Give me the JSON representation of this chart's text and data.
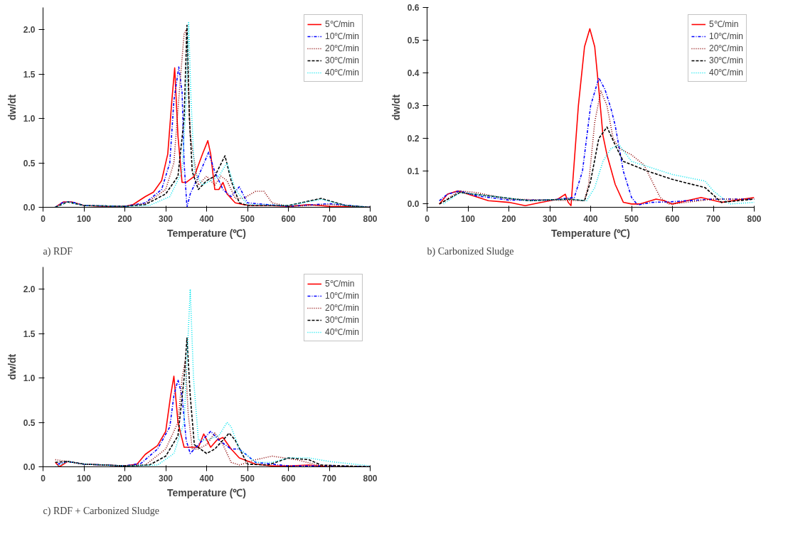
{
  "chart_data": [
    {
      "type": "line",
      "xlabel": "Temperature (℃)",
      "ylabel": "dw/dt",
      "annotations": [
        "a) RDF"
      ],
      "xlim": [
        0,
        800
      ],
      "xticks": [
        0,
        100,
        200,
        300,
        400,
        500,
        600,
        700,
        800
      ],
      "ylim": [
        0,
        2.25
      ],
      "yticks": [
        {
          "value": 0,
          "label": "0.0"
        },
        0.5,
        {
          "value": 1,
          "label": "1.0"
        },
        1.5,
        {
          "value": 2,
          "label": "2.0"
        }
      ],
      "legend": "top right",
      "grid": false,
      "series": [
        {
          "name": "5℃/min",
          "color": "#ff0000",
          "line_style": "solid",
          "x": [
            30,
            50,
            70,
            100,
            150,
            200,
            220,
            250,
            270,
            290,
            305,
            315,
            322,
            330,
            340,
            350,
            370,
            390,
            403,
            410,
            420,
            430,
            440,
            450,
            470,
            490,
            510,
            530,
            550,
            600,
            650,
            700,
            800
          ],
          "values": [
            0,
            0.06,
            0.06,
            0.02,
            0.01,
            0.01,
            0.03,
            0.12,
            0.17,
            0.3,
            0.6,
            1.2,
            1.57,
            0.8,
            0.28,
            0.28,
            0.35,
            0.6,
            0.75,
            0.6,
            0.2,
            0.2,
            0.28,
            0.15,
            0.05,
            0.03,
            0.02,
            0.02,
            0.02,
            0.01,
            0.03,
            0.01,
            0
          ]
        },
        {
          "name": "10℃/min",
          "color": "#0000ff",
          "line_style": "dashdot",
          "x": [
            30,
            50,
            70,
            100,
            200,
            250,
            290,
            310,
            320,
            332,
            340,
            345,
            352,
            360,
            380,
            405,
            420,
            440,
            460,
            480,
            500,
            550,
            600,
            700,
            800
          ],
          "values": [
            0,
            0.06,
            0.06,
            0.02,
            0.01,
            0.05,
            0.2,
            0.5,
            1.2,
            1.58,
            1.3,
            0.5,
            0,
            0.15,
            0.35,
            0.62,
            0.4,
            0.2,
            0.12,
            0.23,
            0.05,
            0.03,
            0.01,
            0.04,
            0
          ]
        },
        {
          "name": "20℃/min",
          "color": "#8b0000",
          "line_style": "dotted",
          "x": [
            30,
            60,
            100,
            200,
            250,
            300,
            320,
            335,
            345,
            350,
            360,
            380,
            400,
            420,
            435,
            450,
            470,
            490,
            520,
            540,
            560,
            600,
            700,
            800
          ],
          "values": [
            0,
            0.06,
            0.02,
            0.01,
            0.04,
            0.2,
            0.5,
            1.4,
            1.95,
            2.0,
            0.8,
            0.25,
            0.35,
            0.25,
            0.35,
            0.3,
            0.1,
            0.1,
            0.18,
            0.18,
            0.05,
            0.01,
            0.03,
            0
          ]
        },
        {
          "name": "30℃/min",
          "color": "#000000",
          "line_style": "dashed",
          "x": [
            30,
            60,
            100,
            200,
            250,
            300,
            330,
            345,
            352,
            358,
            365,
            380,
            400,
            420,
            445,
            460,
            480,
            500,
            600,
            680,
            740,
            800
          ],
          "values": [
            0,
            0.06,
            0.02,
            0.01,
            0.03,
            0.15,
            0.35,
            1.0,
            2.05,
            1.0,
            0.4,
            0.2,
            0.3,
            0.35,
            0.58,
            0.3,
            0.05,
            0.02,
            0.02,
            0.1,
            0.02,
            0
          ]
        },
        {
          "name": "40℃/min",
          "color": "#00e5ee",
          "line_style": "dotted",
          "x": [
            30,
            60,
            100,
            200,
            260,
            310,
            340,
            350,
            356,
            362,
            370,
            390,
            410,
            430,
            450,
            470,
            500,
            600,
            680,
            740,
            800
          ],
          "values": [
            0,
            0.06,
            0.02,
            0.01,
            0.02,
            0.12,
            0.4,
            1.2,
            2.08,
            1.2,
            0.4,
            0.25,
            0.3,
            0.35,
            0.5,
            0.2,
            0.03,
            0.02,
            0.09,
            0.02,
            0
          ]
        }
      ]
    },
    {
      "type": "line",
      "xlabel": "Temperature (℃)",
      "ylabel": "dw/dt",
      "annotations": [
        "b) Carbonized Sludge"
      ],
      "xlim": [
        0,
        800
      ],
      "xticks": [
        0,
        100,
        200,
        300,
        400,
        500,
        600,
        700,
        800
      ],
      "ylim": [
        -0.01,
        0.6
      ],
      "yticks": [
        {
          "value": 0,
          "label": "0.0"
        },
        0.1,
        0.2,
        0.3,
        0.4,
        0.5,
        0.6
      ],
      "legend": "top right",
      "grid": false,
      "series": [
        {
          "name": "5℃/min",
          "color": "#ff0000",
          "line_style": "solid",
          "x": [
            30,
            50,
            75,
            100,
            150,
            200,
            240,
            280,
            320,
            338,
            345,
            352,
            370,
            385,
            398,
            410,
            420,
            430,
            440,
            460,
            480,
            500,
            520,
            560,
            580,
            600,
            670,
            720,
            800
          ],
          "values": [
            0,
            0.03,
            0.04,
            0.03,
            0.01,
            0.005,
            -0.005,
            0.005,
            0.015,
            0.03,
            0.005,
            -0.005,
            0.3,
            0.48,
            0.535,
            0.48,
            0.35,
            0.21,
            0.15,
            0.06,
            0.005,
            0,
            0,
            0.015,
            0.01,
            0,
            0.02,
            0.005,
            0.02
          ]
        },
        {
          "name": "10℃/min",
          "color": "#0000ff",
          "line_style": "dashdot",
          "x": [
            30,
            50,
            80,
            120,
            200,
            300,
            360,
            380,
            400,
            420,
            435,
            450,
            460,
            480,
            500,
            515,
            550,
            600,
            700,
            800
          ],
          "values": [
            0.01,
            0.03,
            0.04,
            0.025,
            0.012,
            0.012,
            0.02,
            0.1,
            0.3,
            0.385,
            0.35,
            0.29,
            0.24,
            0.1,
            0.02,
            -0.003,
            0.005,
            0.007,
            0.015,
            0.015
          ]
        },
        {
          "name": "20℃/min",
          "color": "#8b0000",
          "line_style": "dotted",
          "x": [
            30,
            80,
            120,
            200,
            300,
            385,
            395,
            410,
            425,
            440,
            455,
            470,
            500,
            530,
            550,
            570,
            590,
            600,
            700,
            800
          ],
          "values": [
            0,
            0.04,
            0.035,
            0.015,
            0.012,
            0.01,
            0.06,
            0.25,
            0.345,
            0.3,
            0.2,
            0.17,
            0.15,
            0.12,
            0.07,
            0.02,
            0,
            0,
            0.015,
            0.015
          ]
        },
        {
          "name": "30℃/min",
          "color": "#000000",
          "line_style": "dashed",
          "x": [
            30,
            80,
            150,
            250,
            350,
            385,
            400,
            420,
            440,
            460,
            480,
            540,
            600,
            680,
            720,
            800
          ],
          "values": [
            0,
            0.035,
            0.025,
            0.01,
            0.015,
            0.01,
            0.07,
            0.2,
            0.235,
            0.18,
            0.13,
            0.1,
            0.075,
            0.05,
            0.005,
            0.015
          ]
        },
        {
          "name": "40℃/min",
          "color": "#00e5ee",
          "line_style": "dotted",
          "x": [
            40,
            80,
            150,
            250,
            350,
            390,
            410,
            430,
            450,
            470,
            500,
            600,
            680,
            700,
            740,
            800
          ],
          "values": [
            0.0,
            0.035,
            0.025,
            0.01,
            0.015,
            0.01,
            0.05,
            0.13,
            0.17,
            0.18,
            0.13,
            0.09,
            0.07,
            0.04,
            0,
            0.005
          ]
        }
      ]
    },
    {
      "type": "line",
      "xlabel": "Temperature (℃)",
      "ylabel": "dw/dt",
      "annotations": [
        "c) RDF + Carbonized Sludge"
      ],
      "xlim": [
        0,
        800
      ],
      "xticks": [
        0,
        100,
        200,
        300,
        400,
        500,
        600,
        700,
        800
      ],
      "ylim": [
        0,
        2.25
      ],
      "yticks": [
        {
          "value": 0,
          "label": "0.0"
        },
        0.5,
        {
          "value": 1,
          "label": "1.0"
        },
        1.5,
        {
          "value": 2,
          "label": "2.0"
        }
      ],
      "legend": "top right",
      "grid": false,
      "series": [
        {
          "name": "5℃/min",
          "color": "#ff0000",
          "line_style": "solid",
          "x": [
            30,
            40,
            60,
            100,
            200,
            230,
            250,
            280,
            300,
            312,
            320,
            330,
            345,
            360,
            380,
            393,
            410,
            425,
            440,
            460,
            480,
            520,
            560,
            600,
            650,
            700,
            800
          ],
          "values": [
            0.05,
            0,
            0.06,
            0.03,
            0.01,
            0.03,
            0.14,
            0.24,
            0.4,
            0.8,
            1.02,
            0.5,
            0.22,
            0.22,
            0.22,
            0.37,
            0.22,
            0.3,
            0.33,
            0.2,
            0.1,
            0.03,
            0.01,
            0.01,
            0.02,
            0,
            0
          ]
        },
        {
          "name": "10℃/min",
          "color": "#0000ff",
          "line_style": "dashdot",
          "x": [
            36,
            60,
            100,
            200,
            240,
            280,
            310,
            320,
            330,
            340,
            350,
            360,
            380,
            410,
            430,
            460,
            480,
            520,
            600,
            700,
            800
          ],
          "values": [
            0.03,
            0.06,
            0.03,
            0.01,
            0.04,
            0.2,
            0.45,
            0.8,
            0.98,
            0.8,
            0.3,
            0.15,
            0.25,
            0.4,
            0.3,
            0.2,
            0.2,
            0.05,
            0.01,
            0.01,
            0
          ]
        },
        {
          "name": "20℃/min",
          "color": "#8b0000",
          "line_style": "dotted",
          "x": [
            30,
            60,
            100,
            200,
            250,
            300,
            330,
            340,
            348,
            355,
            365,
            380,
            400,
            420,
            440,
            460,
            480,
            520,
            560,
            620,
            680,
            800
          ],
          "values": [
            0.08,
            0.06,
            0.03,
            0.01,
            0.02,
            0.2,
            0.5,
            1.0,
            1.2,
            0.6,
            0.2,
            0.2,
            0.25,
            0.38,
            0.25,
            0.05,
            0.02,
            0.08,
            0.12,
            0.08,
            0.01,
            0
          ]
        },
        {
          "name": "30℃/min",
          "color": "#000000",
          "line_style": "dashed",
          "x": [
            30,
            60,
            100,
            200,
            260,
            300,
            330,
            345,
            352,
            360,
            370,
            400,
            420,
            440,
            455,
            470,
            500,
            550,
            600,
            650,
            680,
            800
          ],
          "values": [
            0.05,
            0.06,
            0.03,
            0.01,
            0.02,
            0.12,
            0.35,
            1.0,
            1.45,
            0.8,
            0.25,
            0.15,
            0.2,
            0.3,
            0.38,
            0.3,
            0.03,
            0.02,
            0.1,
            0.08,
            0.02,
            0
          ]
        },
        {
          "name": "40℃/min",
          "color": "#00e5ee",
          "line_style": "dotted",
          "x": [
            30,
            60,
            100,
            200,
            280,
            320,
            345,
            355,
            360,
            368,
            380,
            400,
            430,
            450,
            460,
            480,
            520,
            560,
            600,
            650,
            700,
            800
          ],
          "values": [
            0,
            0.06,
            0.03,
            0.01,
            0.02,
            0.15,
            0.5,
            1.5,
            2.0,
            1.0,
            0.3,
            0.3,
            0.35,
            0.5,
            0.45,
            0.2,
            0.05,
            0.05,
            0.1,
            0.1,
            0.06,
            0.01
          ]
        }
      ]
    }
  ]
}
